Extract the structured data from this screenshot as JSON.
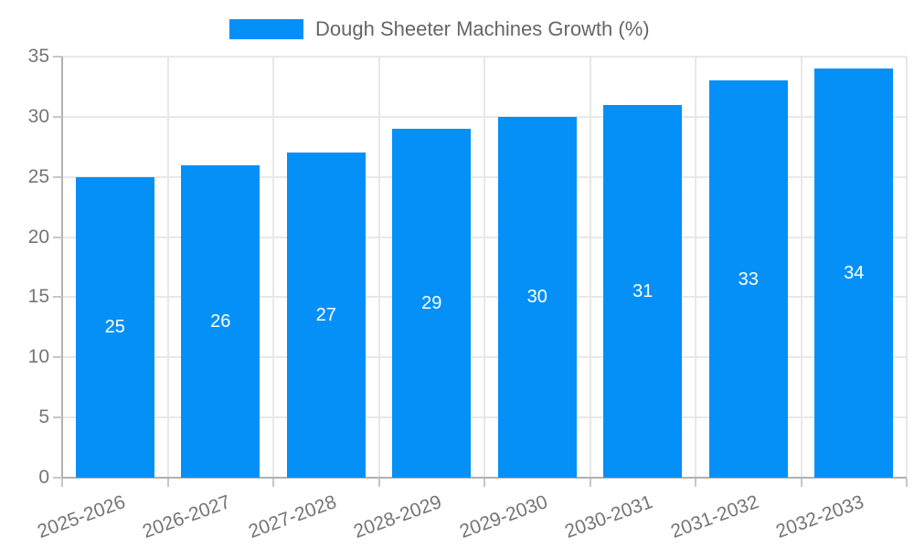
{
  "chart_data": {
    "type": "bar",
    "title": "Dough Sheeter Machines Growth (%)",
    "categories": [
      "2025-2026",
      "2026-2027",
      "2027-2028",
      "2028-2029",
      "2029-2030",
      "2030-2031",
      "2031-2032",
      "2032-2033"
    ],
    "values": [
      25,
      26,
      27,
      29,
      30,
      31,
      33,
      34
    ],
    "xlabel": "",
    "ylabel": "",
    "ylim": [
      0,
      35
    ],
    "yticks": [
      0,
      5,
      10,
      15,
      20,
      25,
      30,
      35
    ],
    "grid": true,
    "legend_position": "top",
    "bar_labels_inside": true,
    "x_label_rotation_deg": -20,
    "colors": {
      "bar": "#0590f8",
      "bar_label": "#ffffff",
      "grid": "#e8e8e8",
      "axis": "#b1b1b1",
      "tick": "#c6c6c6",
      "tick_label": "#757575",
      "legend_text": "#666666",
      "background": "#ffffff"
    }
  }
}
